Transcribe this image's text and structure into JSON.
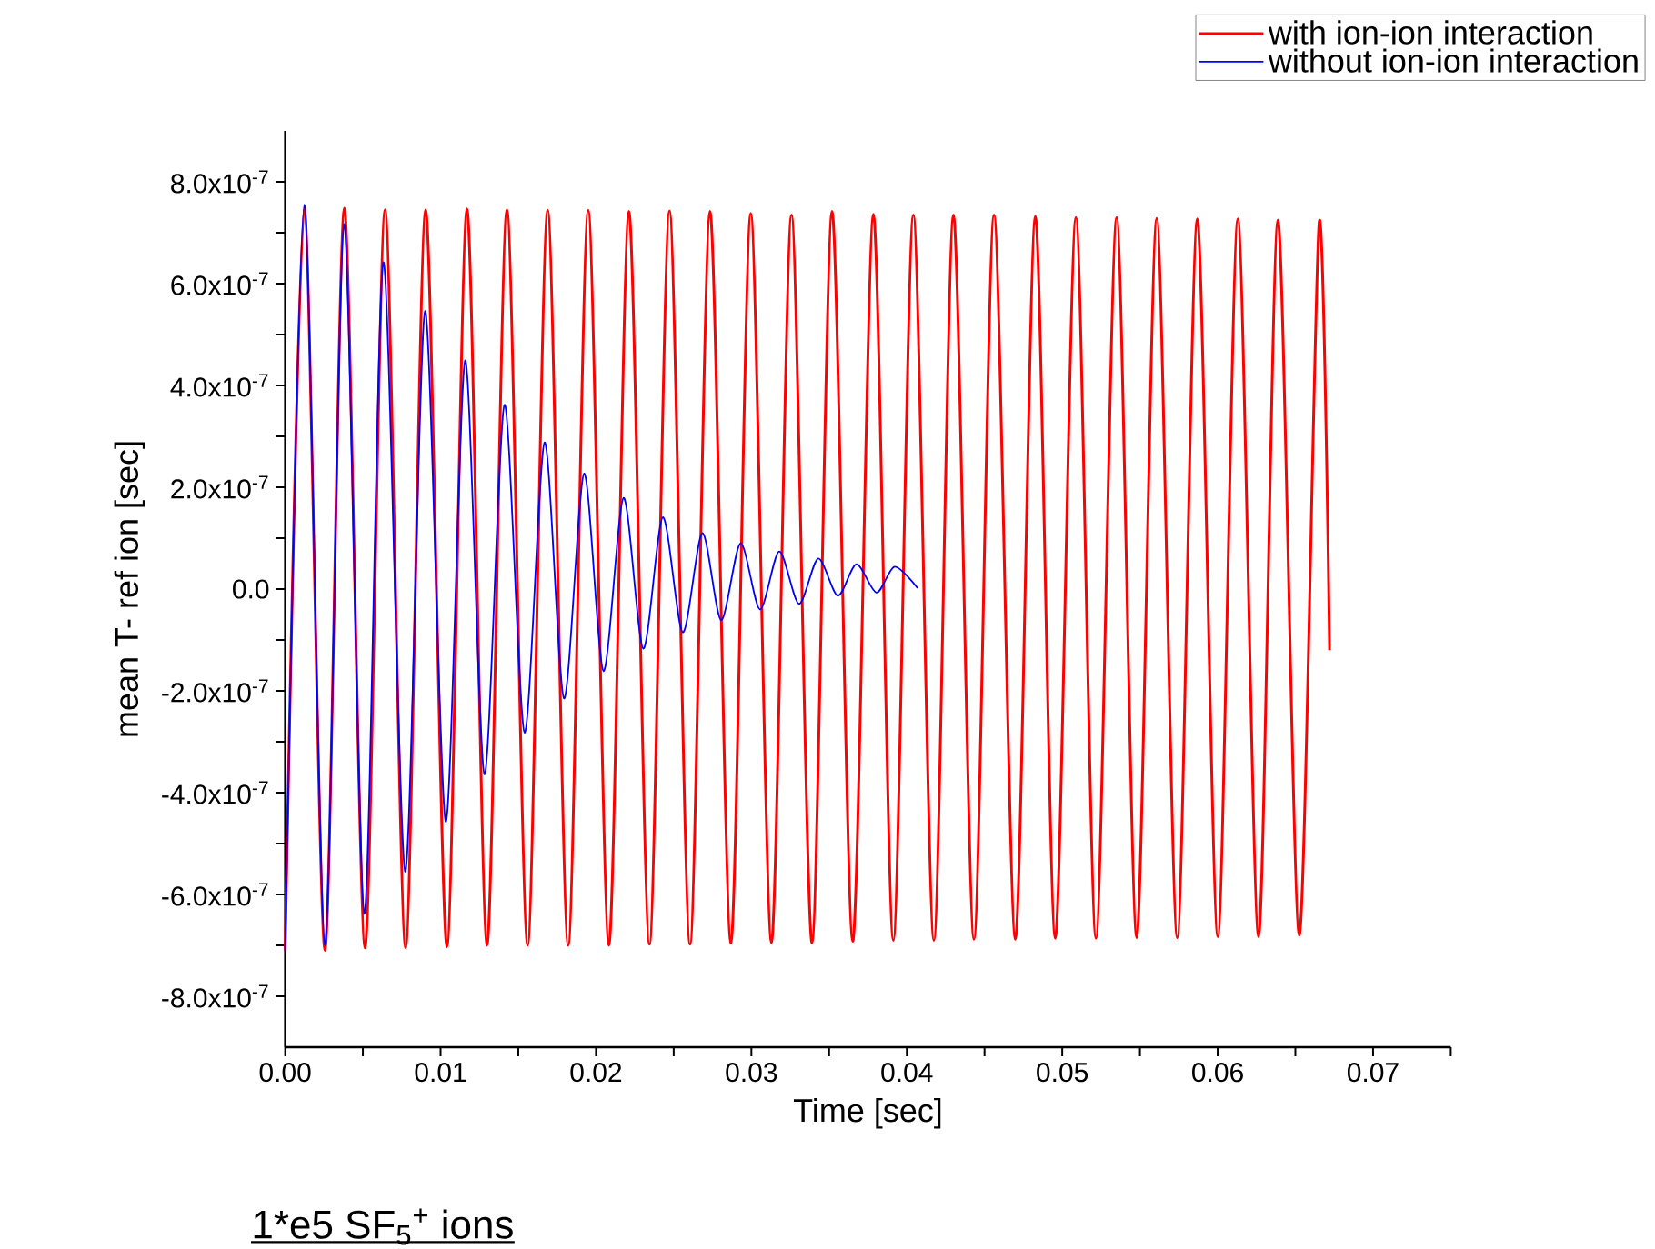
{
  "chart_data": {
    "type": "line",
    "xlabel": "Time [sec]",
    "ylabel": "mean T- ref ion [sec]",
    "xlim": [
      0,
      0.075
    ],
    "ylim": [
      -9e-07,
      9e-07
    ],
    "xticks": [
      {
        "value": 0,
        "label": "0.00"
      },
      {
        "value": 0.005,
        "label": null
      },
      {
        "value": 0.01,
        "label": "0.01"
      },
      {
        "value": 0.015,
        "label": null
      },
      {
        "value": 0.02,
        "label": "0.02"
      },
      {
        "value": 0.025,
        "label": null
      },
      {
        "value": 0.03,
        "label": "0.03"
      },
      {
        "value": 0.035,
        "label": null
      },
      {
        "value": 0.04,
        "label": "0.04"
      },
      {
        "value": 0.045,
        "label": null
      },
      {
        "value": 0.05,
        "label": "0.05"
      },
      {
        "value": 0.055,
        "label": null
      },
      {
        "value": 0.06,
        "label": "0.06"
      },
      {
        "value": 0.065,
        "label": null
      },
      {
        "value": 0.07,
        "label": "0.07"
      },
      {
        "value": 0.075,
        "label": null
      }
    ],
    "yticks": [
      {
        "value": -8e-07,
        "label": "-8.0x10$^{-7}$"
      },
      {
        "value": -7e-07,
        "label": null
      },
      {
        "value": -6e-07,
        "label": "-6.0x10$^{-7}$"
      },
      {
        "value": -5e-07,
        "label": null
      },
      {
        "value": -4e-07,
        "label": "-4.0x10$^{-7}$"
      },
      {
        "value": -3e-07,
        "label": null
      },
      {
        "value": -2e-07,
        "label": "-2.0x10$^{-7}$"
      },
      {
        "value": -1e-07,
        "label": null
      },
      {
        "value": 0,
        "label": "0.0"
      },
      {
        "value": 1e-07,
        "label": null
      },
      {
        "value": 2e-07,
        "label": "2.0x10$^{-7}$"
      },
      {
        "value": 3e-07,
        "label": null
      },
      {
        "value": 4e-07,
        "label": "4.0x10$^{-7}$"
      },
      {
        "value": 5e-07,
        "label": null
      },
      {
        "value": 6e-07,
        "label": "6.0x10$^{-7}$"
      },
      {
        "value": 7e-07,
        "label": null
      },
      {
        "value": 8e-07,
        "label": "8.0x10$^{-7}$"
      }
    ],
    "legend": "top right",
    "annotations": [
      "1*e5 SF$_{5}$$^{+}$ ions"
    ],
    "series": [
      {
        "name": "with ion-ion interaction",
        "color": "#ff0000",
        "x": [
          0,
          0.00123,
          0.00256,
          0.00381,
          0.00514,
          0.00643,
          0.00775,
          0.00904,
          0.01041,
          0.0117,
          0.01299,
          0.01427,
          0.0156,
          0.01689,
          0.01821,
          0.0195,
          0.02083,
          0.02212,
          0.02344,
          0.02473,
          0.02605,
          0.02734,
          0.02868,
          0.02996,
          0.03129,
          0.03258,
          0.0339,
          0.03519,
          0.03652,
          0.03785,
          0.03913,
          0.04042,
          0.04174,
          0.043,
          0.04432,
          0.04561,
          0.04698,
          0.04827,
          0.04955,
          0.05088,
          0.05217,
          0.0535,
          0.05479,
          0.05608,
          0.0574,
          0.05869,
          0.06001,
          0.0613,
          0.06263,
          0.06388,
          0.06525,
          0.06653,
          0.0672
        ],
        "values": [
          -7.1e-07,
          7.5e-07,
          -7.1e-07,
          7.48e-07,
          -7.05e-07,
          7.45e-07,
          -7.05e-07,
          7.45e-07,
          -7.03e-07,
          7.47e-07,
          -7e-07,
          7.45e-07,
          -7e-07,
          7.44e-07,
          -7e-07,
          7.44e-07,
          -7e-07,
          7.42e-07,
          -6.98e-07,
          7.43e-07,
          -6.98e-07,
          7.42e-07,
          -6.96e-07,
          7.38e-07,
          -6.95e-07,
          7.35e-07,
          -6.95e-07,
          7.42e-07,
          -6.92e-07,
          7.36e-07,
          -6.9e-07,
          7.35e-07,
          -6.9e-07,
          7.35e-07,
          -6.88e-07,
          7.35e-07,
          -6.88e-07,
          7.32e-07,
          -6.86e-07,
          7.3e-07,
          -6.86e-07,
          7.3e-07,
          -6.85e-07,
          7.28e-07,
          -6.85e-07,
          7.27e-07,
          -6.83e-07,
          7.27e-07,
          -6.83e-07,
          7.25e-07,
          -6.8e-07,
          7.2e-07,
          -1.2e-07
        ]
      },
      {
        "name": "without ion-ion interaction",
        "color": "#0000ff",
        "x": [
          0,
          0.00123,
          0.00256,
          0.00379,
          0.00509,
          0.00632,
          0.00772,
          0.009,
          0.01033,
          0.01158,
          0.01282,
          0.01411,
          0.0154,
          0.01669,
          0.01794,
          0.01923,
          0.02048,
          0.02177,
          0.02304,
          0.0243,
          0.02558,
          0.02684,
          0.02805,
          0.0293,
          0.03055,
          0.03179,
          0.03306,
          0.0343,
          0.03556,
          0.03676,
          0.03805,
          0.03922,
          0.04069
        ],
        "values": [
          -7.1e-07,
          7.55e-07,
          -7e-07,
          7.17e-07,
          -6.38e-07,
          6.42e-07,
          -5.55e-07,
          5.46e-07,
          -4.57e-07,
          4.49e-07,
          -3.64e-07,
          3.62e-07,
          -2.82e-07,
          2.88e-07,
          -2.15e-07,
          2.27e-07,
          -1.61e-07,
          1.79e-07,
          -1.17e-07,
          1.41e-07,
          -8.5e-08,
          1.1e-07,
          -6.1e-08,
          9e-08,
          -4e-08,
          7.4e-08,
          -2.9e-08,
          6e-08,
          -1.3e-08,
          4.9e-08,
          -7e-09,
          4.4e-08,
          2e-09
        ]
      }
    ]
  }
}
